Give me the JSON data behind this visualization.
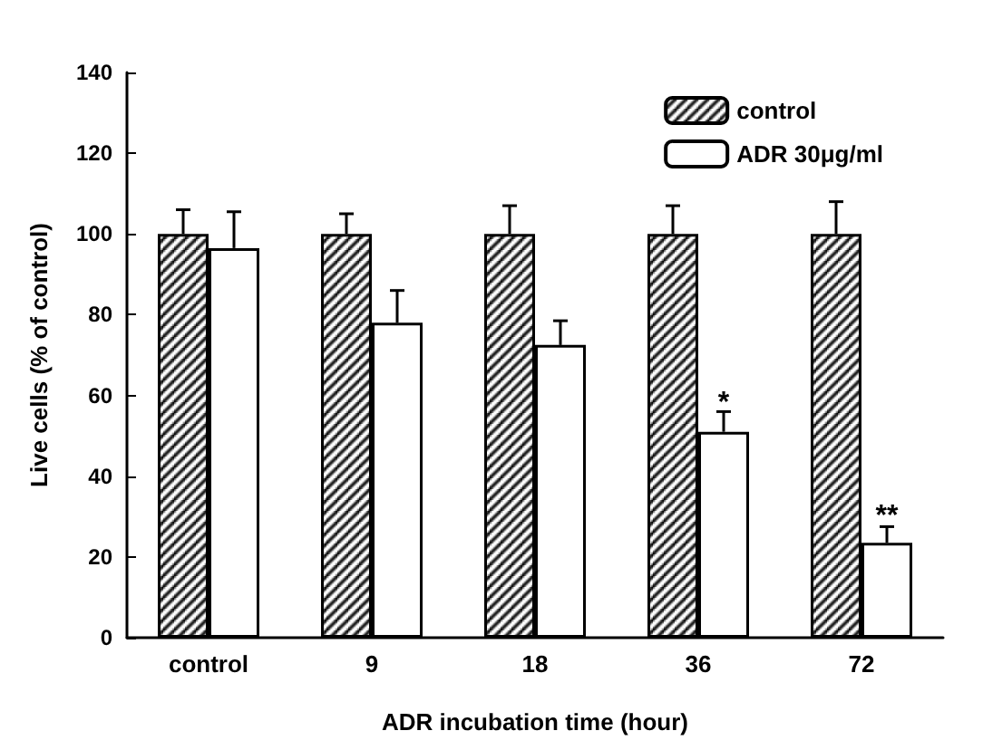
{
  "chart_data": {
    "type": "bar",
    "xlabel": "ADR incubation time (hour)",
    "ylabel": "Live cells (% of control)",
    "categories": [
      "control",
      "9",
      "18",
      "36",
      "72"
    ],
    "series": [
      {
        "name": "control",
        "color": "#000000",
        "values": [
          100,
          100,
          100,
          100,
          100
        ],
        "errors": [
          6,
          5,
          7,
          7,
          8
        ]
      },
      {
        "name": "ADR 30μg/ml",
        "color": "#ffffff",
        "values": [
          96.5,
          78,
          72.5,
          51,
          23.5
        ],
        "errors": [
          9,
          8,
          6,
          5,
          4
        ]
      }
    ],
    "annotations": [
      {
        "text": "*",
        "x": "36",
        "y": 58
      },
      {
        "text": "**",
        "x": "72",
        "y": 30
      }
    ],
    "ylim": [
      0,
      140
    ],
    "yticks": [
      0,
      20,
      40,
      60,
      80,
      100,
      120,
      140
    ],
    "grid": false,
    "legend": "top right"
  }
}
